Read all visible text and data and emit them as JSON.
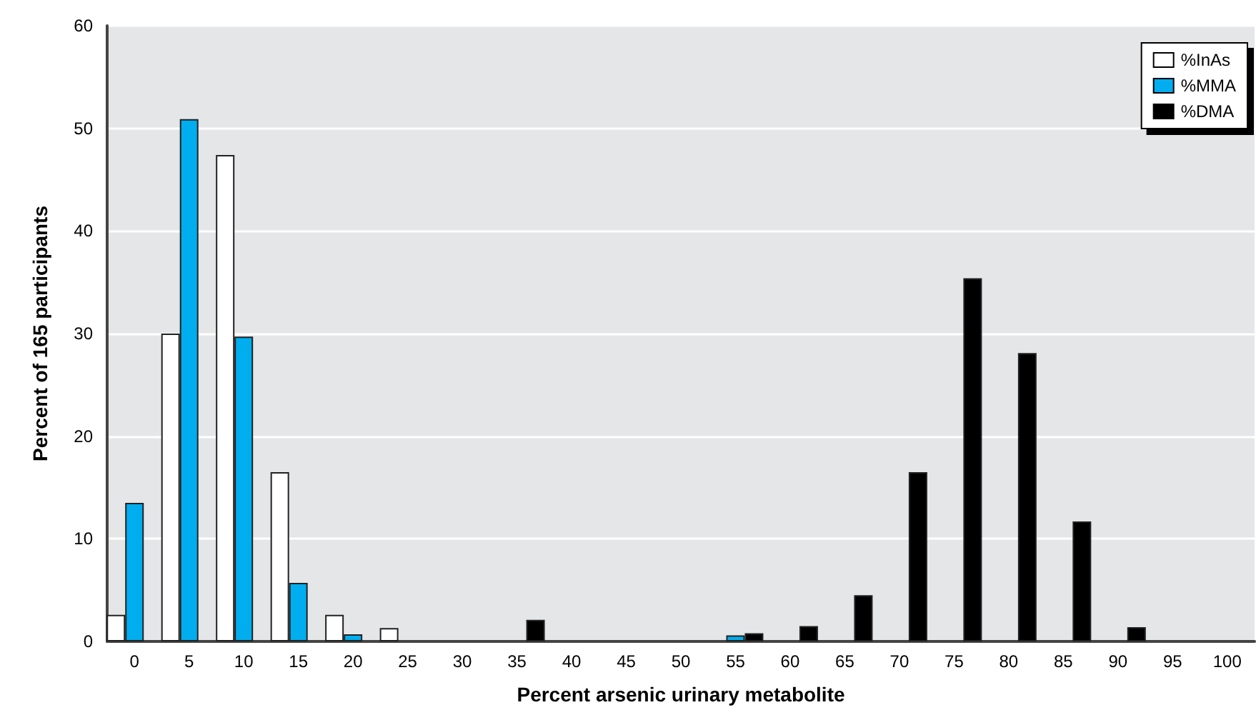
{
  "chart_data": {
    "type": "bar",
    "xlabel": "Percent arsenic urinary metabolite",
    "ylabel": "Percent of 165 participants",
    "categories": [
      "0",
      "5",
      "10",
      "15",
      "20",
      "25",
      "30",
      "35",
      "40",
      "45",
      "50",
      "55",
      "60",
      "65",
      "70",
      "75",
      "80",
      "85",
      "90",
      "95",
      "100"
    ],
    "series": [
      {
        "name": "%InAs",
        "color": "#ffffff",
        "values": [
          2.6,
          30,
          47.4,
          16.5,
          2.6,
          1.3,
          null,
          null,
          null,
          null,
          null,
          null,
          null,
          null,
          null,
          null,
          null,
          null,
          null,
          null,
          null
        ]
      },
      {
        "name": "%MMA",
        "color": "#00aeef",
        "values": [
          13.5,
          50.9,
          29.7,
          5.7,
          0.7,
          null,
          null,
          null,
          null,
          null,
          null,
          0.6,
          null,
          null,
          null,
          null,
          null,
          null,
          null,
          null,
          null
        ]
      },
      {
        "name": "%DMA",
        "color": "#000000",
        "values": [
          null,
          null,
          null,
          null,
          null,
          null,
          null,
          2.1,
          null,
          null,
          null,
          0.8,
          1.5,
          4.5,
          16.5,
          35.4,
          28.1,
          11.7,
          1.4,
          null,
          null
        ]
      }
    ],
    "ylim": [
      0,
      60
    ],
    "yticks": [
      0,
      10,
      20,
      30,
      40,
      50,
      60
    ],
    "grid": "y",
    "legend": "top right"
  }
}
